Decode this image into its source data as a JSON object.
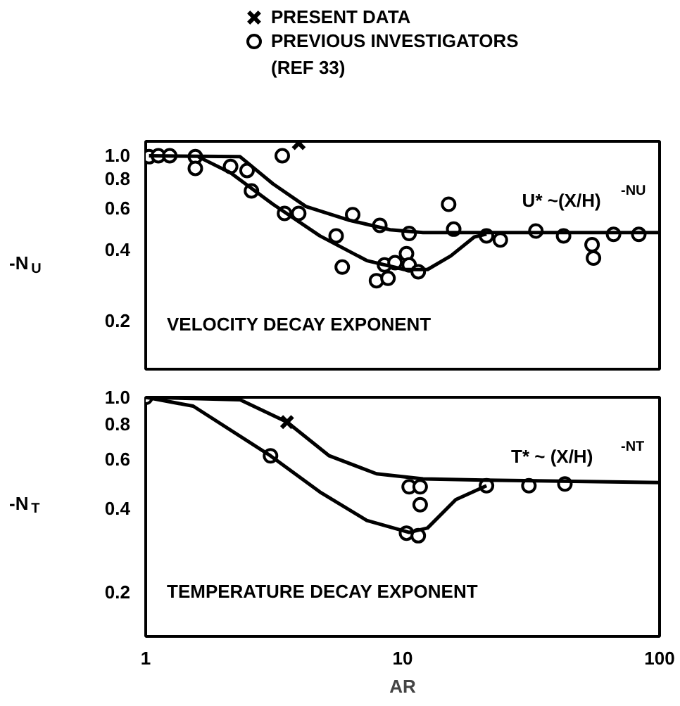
{
  "chart_data": [
    {
      "type": "scatter",
      "ylabel": "-N$_{U}$",
      "log": "xy",
      "xlim": [
        1,
        100
      ],
      "ylim": [
        0.125,
        1.15
      ],
      "xticks": [
        1,
        10,
        100
      ],
      "yticks": [
        0.2,
        0.4,
        0.6,
        0.8,
        {
          "value": 1.0,
          "label": "1.0"
        }
      ],
      "tick_labels": "y",
      "grid": false,
      "legend": "top",
      "annotations": [
        "VELOCITY DECAY EXPONENT",
        "U* ~(X/H)$^{-NU}$"
      ],
      "series": [
        {
          "name": "PRESENT DATA",
          "type": "scatter",
          "marker": "cross",
          "color": "#000000",
          "x": [
            3.94
          ],
          "values": [
            1.13
          ]
        },
        {
          "name": "PREVIOUS INVESTIGATORS\n(REF 33)",
          "type": "scatter",
          "marker": "circle",
          "color": "#000000",
          "x": [
            1.03,
            1.12,
            1.24,
            1.56,
            1.56,
            2.14,
            2.48,
            2.58,
            3.4,
            3.47,
            3.94,
            5.51,
            5.82,
            6.39,
            7.91,
            8.15,
            8.77,
            8.5,
            9.34,
            10.35,
            10.6,
            10.6,
            11.5,
            15.1,
            15.8,
            21.2,
            24.0,
            33.0,
            42.3,
            54.6,
            55.3,
            66.2,
            83
          ],
          "values": [
            0.99,
            1.0,
            1.0,
            0.99,
            0.884,
            0.9,
            0.866,
            0.71,
            1.0,
            0.57,
            0.57,
            0.458,
            0.338,
            0.563,
            0.296,
            0.507,
            0.303,
            0.345,
            0.353,
            0.385,
            0.469,
            0.345,
            0.323,
            0.623,
            0.489,
            0.458,
            0.44,
            0.48,
            0.458,
            0.42,
            0.369,
            0.465,
            0.465
          ]
        },
        {
          "type": "line",
          "marker": "none",
          "color": "#000000",
          "x": [
            1.03,
            2.33,
            3.13,
            4.2,
            6.13,
            8.94,
            12.0,
            100
          ],
          "values": [
            1.0,
            0.99,
            0.76,
            0.61,
            0.535,
            0.486,
            0.473,
            0.473
          ]
        },
        {
          "type": "line",
          "marker": "none",
          "color": "#000000",
          "x": [
            1.6,
            2.14,
            3.13,
            4.76,
            7.25,
            10.15,
            12.5,
            15.4,
            19.0,
            21.2
          ],
          "values": [
            0.99,
            0.846,
            0.623,
            0.458,
            0.36,
            0.33,
            0.33,
            0.377,
            0.453,
            0.466
          ]
        }
      ]
    },
    {
      "type": "scatter",
      "ylabel": "-N$_{T}$",
      "xlabel": "AR",
      "log": "xy",
      "xlim": [
        1,
        100
      ],
      "ylim": [
        0.139,
        1.0
      ],
      "xticks": [
        1,
        10,
        100
      ],
      "yticks": [
        0.2,
        0.4,
        0.6,
        0.8,
        {
          "value": 1.0,
          "label": "1.0"
        }
      ],
      "grid": false,
      "annotations": [
        "TEMPERATURE DECAY EXPONENT",
        "T* ~ (X/H)$^{-NT}$"
      ],
      "series": [
        {
          "type": "scatter",
          "marker": "cross",
          "color": "#000000",
          "x": [
            3.55
          ],
          "values": [
            0.815
          ]
        },
        {
          "type": "scatter",
          "marker": "circle",
          "color": "#000000",
          "x": [
            1.0,
            3.06,
            10.6,
            11.7,
            11.7,
            10.35,
            11.5,
            21.2,
            31.0,
            42.8
          ],
          "values": [
            1.0,
            0.617,
            0.478,
            0.478,
            0.412,
            0.326,
            0.319,
            0.482,
            0.482,
            0.489
          ]
        },
        {
          "type": "line",
          "marker": "none",
          "color": "#000000",
          "x": [
            1.0,
            2.33,
            3.55,
            5.18,
            7.91,
            12.0,
            20.7,
            100
          ],
          "values": [
            1.0,
            0.98,
            0.815,
            0.617,
            0.532,
            0.51,
            0.505,
            0.495
          ]
        },
        {
          "type": "line",
          "marker": "none",
          "color": "#000000",
          "x": [
            1.0,
            1.53,
            3.06,
            4.76,
            7.25,
            10.6,
            12.5,
            16.1,
            21.2
          ],
          "values": [
            1.0,
            0.93,
            0.617,
            0.458,
            0.362,
            0.328,
            0.34,
            0.43,
            0.482
          ]
        }
      ]
    }
  ]
}
